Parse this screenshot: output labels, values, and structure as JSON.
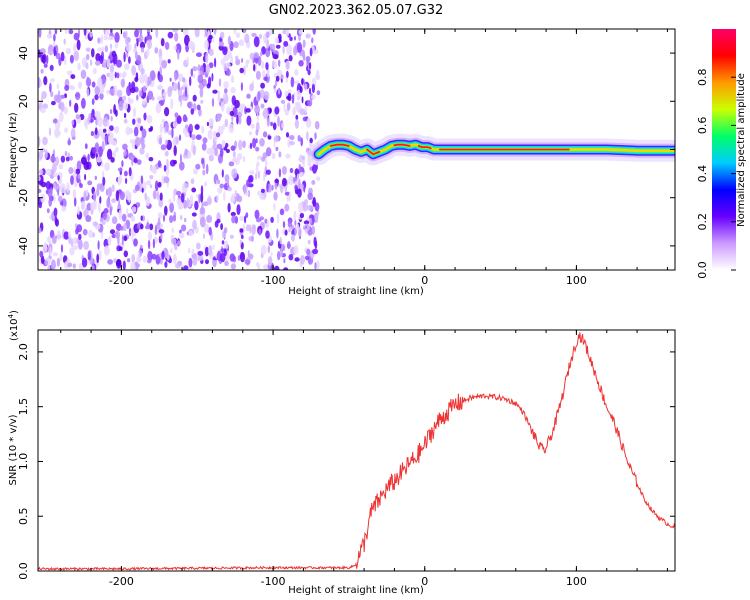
{
  "title": "GN02.2023.362.05.07.G32",
  "chart_data": [
    {
      "type": "heatmap",
      "name": "spectrogram",
      "xlabel": "Height of straight line (km)",
      "ylabel": "Frequency (Hz)",
      "xlim": [
        -255,
        165
      ],
      "ylim": [
        -50,
        50
      ],
      "xticks": [
        -200,
        -100,
        0,
        100
      ],
      "xtick_labels": [
        "-200",
        "-100",
        "0",
        "100"
      ],
      "yticks": [
        -40,
        -20,
        0,
        20,
        40
      ],
      "ytick_labels": [
        "-40",
        "-20",
        "0",
        "20",
        "40"
      ],
      "noise_region_x": [
        -255,
        -70
      ],
      "ridge": {
        "x": [
          -70,
          -66,
          -62,
          -58,
          -54,
          -50,
          -46,
          -42,
          -38,
          -34,
          -30,
          -26,
          -22,
          -18,
          -14,
          -10,
          -6,
          -2,
          2,
          6,
          10,
          20,
          40,
          60,
          80,
          95,
          105,
          120,
          140,
          165
        ],
        "freq": [
          -2,
          0,
          1.5,
          2,
          2,
          1.5,
          0,
          -1,
          0,
          -2,
          -1,
          0,
          1.5,
          2,
          2,
          1.5,
          2,
          1,
          1,
          0,
          0,
          0,
          0,
          0,
          0,
          0,
          0,
          0,
          -0.5,
          -0.5
        ]
      },
      "colorbar": {
        "label": "Normalized spectral amplitude",
        "ticks": [
          0.0,
          0.2,
          0.4,
          0.6,
          0.8
        ],
        "tick_labels": [
          "0.0",
          "0.2",
          "0.4",
          "0.6",
          "0.8"
        ],
        "range": [
          0,
          1
        ],
        "colors": [
          "#ffffff",
          "#cc99ff",
          "#6600ff",
          "#0000ff",
          "#00ccff",
          "#00ff66",
          "#ccff00",
          "#ff9900",
          "#ff0000",
          "#ff0066"
        ]
      }
    },
    {
      "type": "line",
      "name": "snr",
      "xlabel": "Height of straight line (km)",
      "ylabel": "SNR (10 * v/v)",
      "scale_label": "(x10",
      "scale_exp": "4",
      "scale_close": ")",
      "xlim": [
        -255,
        165
      ],
      "ylim": [
        0,
        2.2
      ],
      "xticks": [
        -200,
        -100,
        0,
        100
      ],
      "xtick_labels": [
        "-200",
        "-100",
        "0",
        "100"
      ],
      "yticks": [
        0.0,
        0.5,
        1.0,
        1.5,
        2.0
      ],
      "ytick_labels": [
        "0.0",
        "0.5",
        "1.0",
        "1.5",
        "2.0"
      ],
      "color": "#ee3333",
      "series": {
        "x": [
          -255,
          -200,
          -150,
          -110,
          -100,
          -90,
          -60,
          -50,
          -46,
          -40,
          -35,
          -30,
          -25,
          -20,
          -15,
          -10,
          -5,
          0,
          5,
          10,
          15,
          20,
          30,
          40,
          50,
          55,
          60,
          65,
          70,
          75,
          78,
          80,
          85,
          90,
          95,
          100,
          102,
          105,
          110,
          115,
          120,
          125,
          130,
          135,
          140,
          145,
          150,
          155,
          160,
          165
        ],
        "y": [
          0.02,
          0.02,
          0.025,
          0.03,
          0.03,
          0.03,
          0.03,
          0.03,
          0.05,
          0.25,
          0.55,
          0.65,
          0.75,
          0.82,
          0.9,
          0.98,
          1.05,
          1.15,
          1.28,
          1.38,
          1.45,
          1.52,
          1.58,
          1.6,
          1.58,
          1.56,
          1.53,
          1.45,
          1.3,
          1.15,
          1.1,
          1.12,
          1.3,
          1.55,
          1.85,
          2.1,
          2.15,
          2.1,
          1.9,
          1.7,
          1.5,
          1.35,
          1.15,
          0.95,
          0.8,
          0.65,
          0.55,
          0.48,
          0.43,
          0.4
        ]
      }
    }
  ]
}
